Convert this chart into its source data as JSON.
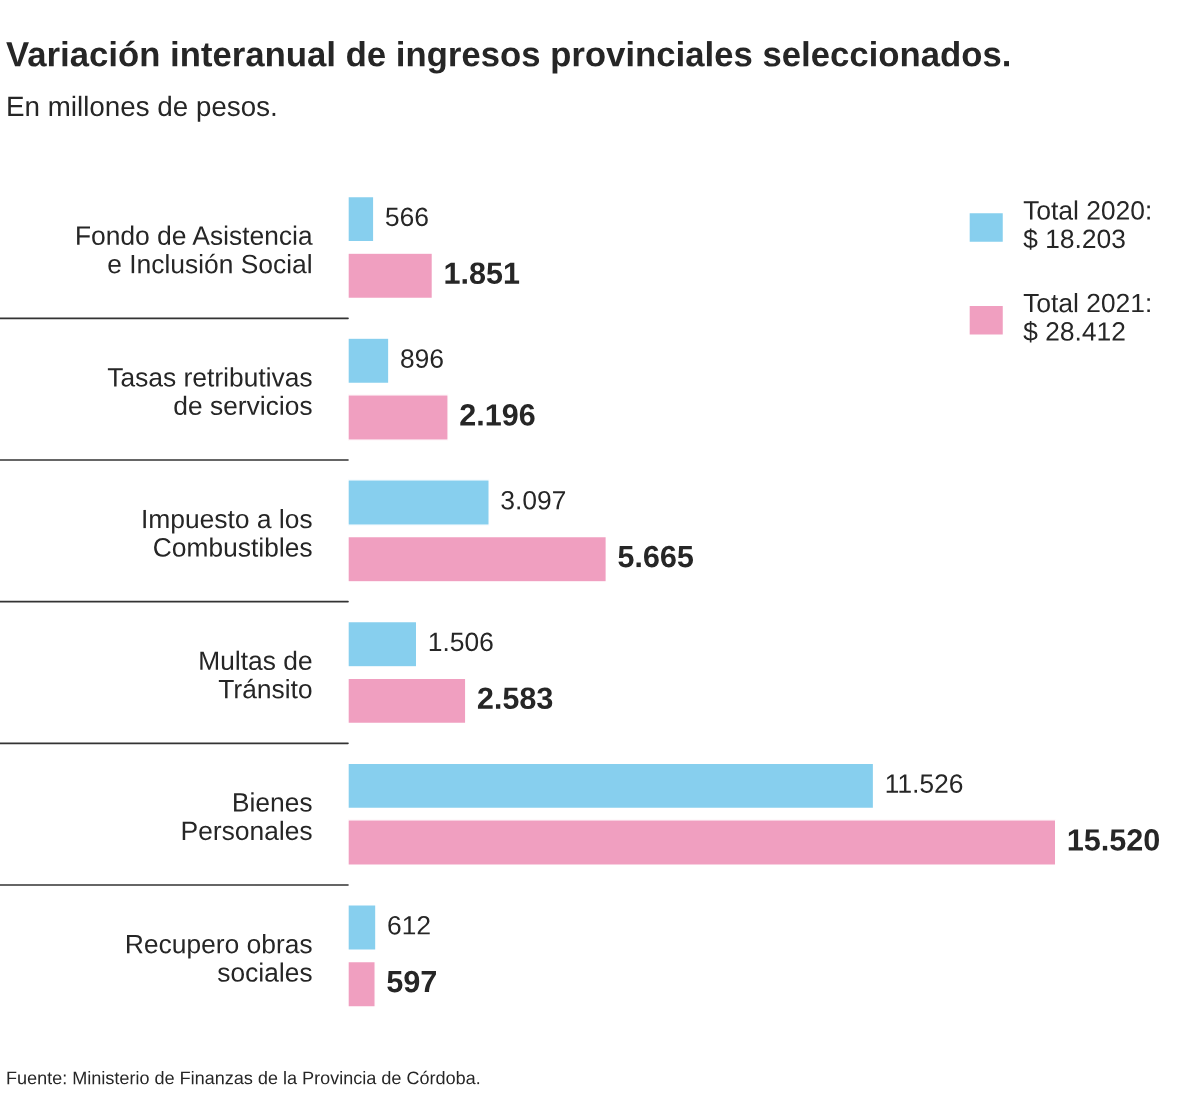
{
  "chart_data": {
    "type": "bar",
    "orientation": "horizontal",
    "title": "Variación interanual de ingresos provinciales seleccionados.",
    "subtitle": "En millones de pesos.",
    "categories": [
      "Fondo de Asistencia\ne Inclusión Social",
      "Tasas retributivas\nde servicios",
      "Impuesto a los\nCombustibles",
      "Multas de\nTránsito",
      "Bienes\nPersonales",
      "Recupero obras\nsociales"
    ],
    "series": [
      {
        "name": "Total 2020:\n$ 18.203",
        "color": "#87cfee",
        "values": [
          566,
          896,
          3097,
          1506,
          11526,
          612
        ],
        "value_labels": [
          "566",
          "896",
          "3.097",
          "1.506",
          "11.526",
          "612"
        ]
      },
      {
        "name": "Total 2021:\n$ 28.412",
        "color": "#f09fc0",
        "values": [
          1851,
          2196,
          5665,
          2583,
          15520,
          597
        ],
        "value_labels": [
          "1.851",
          "2.196",
          "5.665",
          "2.583",
          "15.520",
          "597"
        ]
      }
    ],
    "legend": "top right",
    "grid": false,
    "tick_labels": "y",
    "annotations": [
      "Fuente: Ministerio de Finanzas de la Provincia de Córdoba."
    ]
  }
}
